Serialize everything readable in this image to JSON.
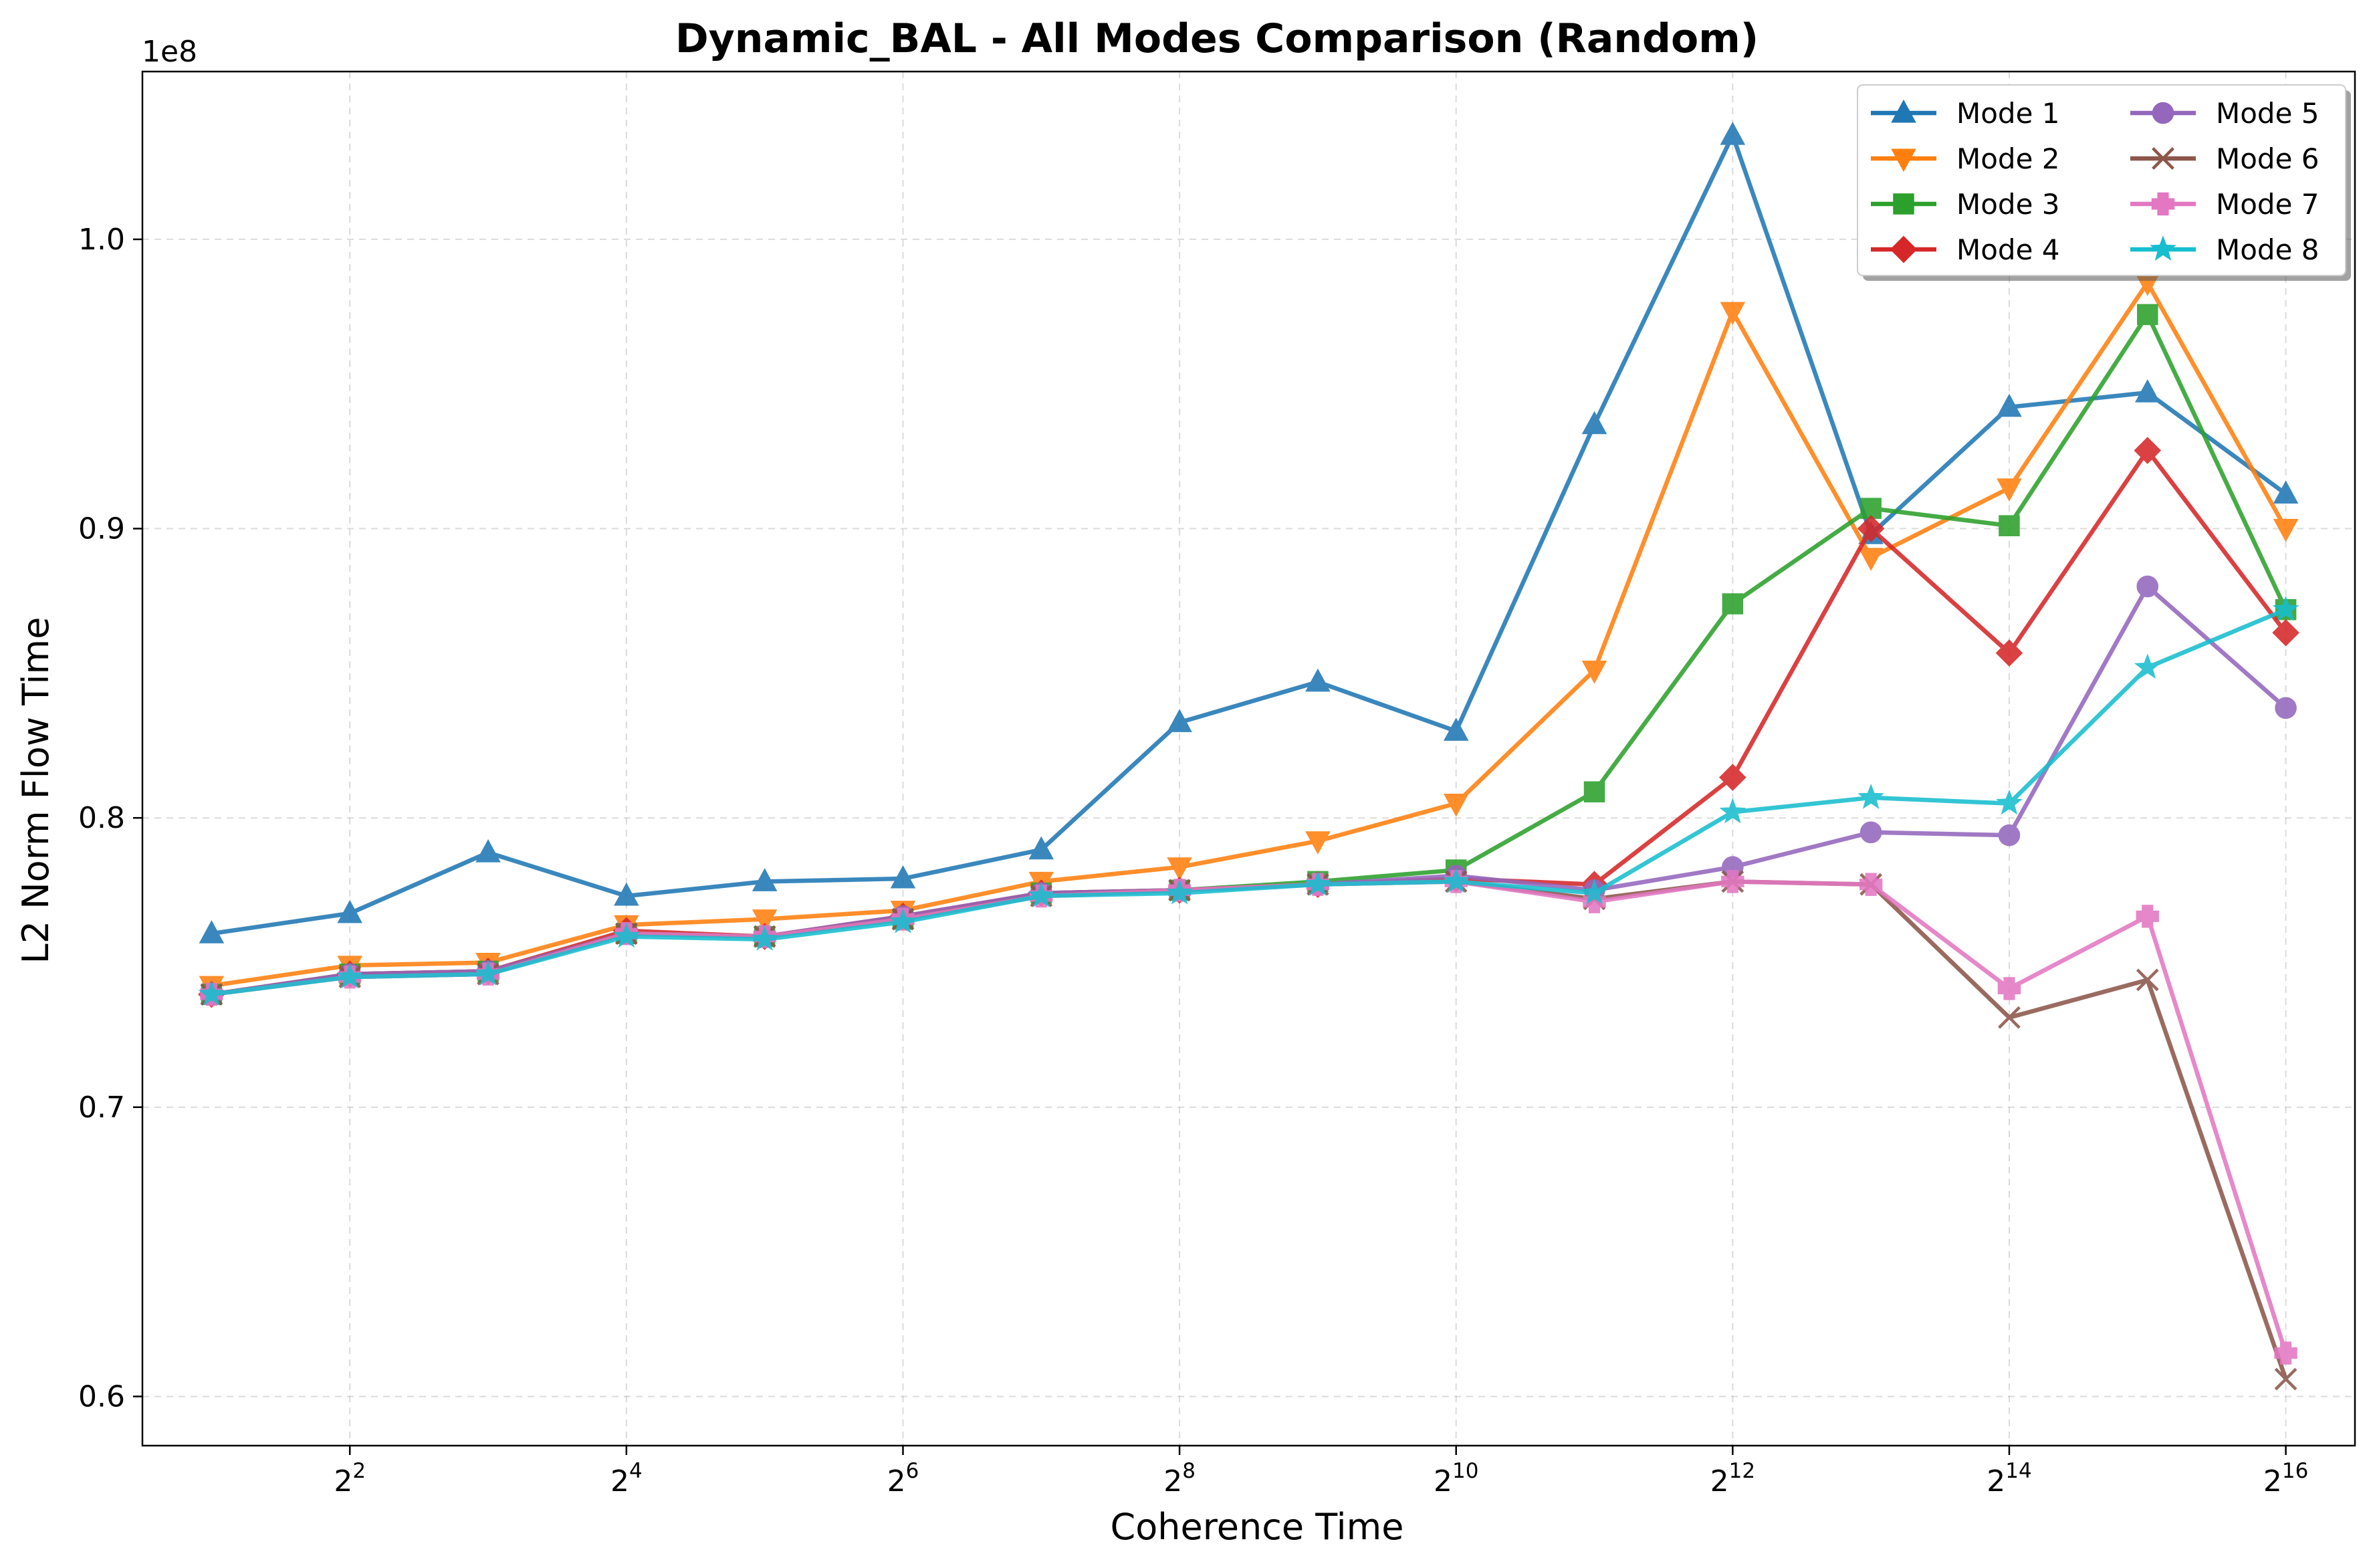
{
  "chart_data": {
    "type": "line",
    "title": "Dynamic_BAL - All Modes Comparison (Random)",
    "xlabel": "Coherence Time",
    "ylabel": "L2 Norm Flow Time",
    "y_offset_label": "1e8",
    "x_scale": "log2",
    "x": [
      2,
      4,
      8,
      16,
      32,
      64,
      128,
      256,
      512,
      1024,
      2048,
      4096,
      8192,
      16384,
      32768,
      65536
    ],
    "x_tick_labels": [
      {
        "base": "2",
        "exp": "2",
        "value": 4
      },
      {
        "base": "2",
        "exp": "4",
        "value": 16
      },
      {
        "base": "2",
        "exp": "6",
        "value": 64
      },
      {
        "base": "2",
        "exp": "8",
        "value": 256
      },
      {
        "base": "2",
        "exp": "10",
        "value": 1024
      },
      {
        "base": "2",
        "exp": "12",
        "value": 4096
      },
      {
        "base": "2",
        "exp": "14",
        "value": 16384
      },
      {
        "base": "2",
        "exp": "16",
        "value": 65536
      }
    ],
    "y_ticks": [
      0.6,
      0.7,
      0.8,
      0.9,
      1.0
    ],
    "y_tick_labels": [
      "0.6",
      "0.7",
      "0.8",
      "0.9",
      "1.0"
    ],
    "ylim": [
      0.583,
      1.058
    ],
    "grid": true,
    "legend_position": "top-right",
    "series": [
      {
        "name": "Mode 1",
        "color": "#1f77b4",
        "marker": "triangle-up",
        "values": [
          0.76,
          0.767,
          0.788,
          0.773,
          0.778,
          0.779,
          0.789,
          0.833,
          0.847,
          0.83,
          0.936,
          1.036,
          0.898,
          0.942,
          0.947,
          0.912
        ]
      },
      {
        "name": "Mode 2",
        "color": "#ff7f0e",
        "marker": "triangle-down",
        "values": [
          0.742,
          0.749,
          0.75,
          0.763,
          0.765,
          0.768,
          0.778,
          0.783,
          0.792,
          0.805,
          0.851,
          0.975,
          0.89,
          0.914,
          0.985,
          0.9
        ]
      },
      {
        "name": "Mode 3",
        "color": "#2ca02c",
        "marker": "square",
        "values": [
          0.739,
          0.746,
          0.747,
          0.76,
          0.759,
          0.765,
          0.774,
          0.775,
          0.778,
          0.782,
          0.809,
          0.874,
          0.907,
          0.901,
          0.974,
          0.872
        ]
      },
      {
        "name": "Mode 4",
        "color": "#d62728",
        "marker": "diamond",
        "values": [
          0.739,
          0.746,
          0.747,
          0.761,
          0.759,
          0.766,
          0.774,
          0.775,
          0.777,
          0.779,
          0.777,
          0.814,
          0.9,
          0.857,
          0.927,
          0.864
        ]
      },
      {
        "name": "Mode 5",
        "color": "#9467bd",
        "marker": "circle",
        "values": [
          0.739,
          0.746,
          0.747,
          0.76,
          0.759,
          0.766,
          0.774,
          0.775,
          0.777,
          0.78,
          0.775,
          0.783,
          0.795,
          0.794,
          0.88,
          0.838
        ]
      },
      {
        "name": "Mode 6",
        "color": "#8c564b",
        "marker": "x",
        "values": [
          0.739,
          0.745,
          0.746,
          0.76,
          0.759,
          0.765,
          0.773,
          0.775,
          0.777,
          0.778,
          0.772,
          0.778,
          0.777,
          0.731,
          0.744,
          0.606
        ]
      },
      {
        "name": "Mode 7",
        "color": "#e377c2",
        "marker": "plus",
        "values": [
          0.739,
          0.745,
          0.746,
          0.76,
          0.759,
          0.765,
          0.773,
          0.775,
          0.777,
          0.778,
          0.771,
          0.778,
          0.777,
          0.741,
          0.766,
          0.615
        ]
      },
      {
        "name": "Mode 8",
        "color": "#17becf",
        "marker": "star",
        "values": [
          0.739,
          0.745,
          0.746,
          0.759,
          0.758,
          0.764,
          0.773,
          0.774,
          0.777,
          0.778,
          0.774,
          0.802,
          0.807,
          0.805,
          0.852,
          0.872
        ]
      }
    ]
  }
}
